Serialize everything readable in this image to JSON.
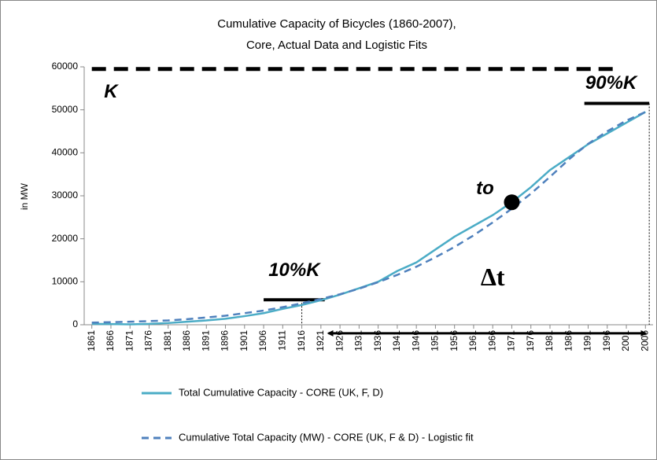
{
  "chart_data": {
    "type": "line",
    "title_lines": [
      "Cumulative Capacity of Bicycles (1860-2007),",
      "Core, Actual Data and Logistic Fits"
    ],
    "y_label": "in MW",
    "x": [
      1861,
      1866,
      1871,
      1876,
      1881,
      1886,
      1891,
      1896,
      1901,
      1906,
      1911,
      1916,
      1921,
      1926,
      1931,
      1936,
      1941,
      1946,
      1951,
      1956,
      1961,
      1966,
      1971,
      1976,
      1981,
      1986,
      1991,
      1996,
      2001,
      2006
    ],
    "series": [
      {
        "name": "Total Cumulative Capacity - CORE (UK, F, D)",
        "color": "#4bacc6",
        "dash": false,
        "values": [
          200,
          150,
          100,
          200,
          400,
          700,
          1000,
          1400,
          2000,
          2700,
          3700,
          4600,
          5700,
          7000,
          8500,
          10000,
          12500,
          14500,
          17500,
          20500,
          23000,
          25500,
          28500,
          32000,
          36000,
          39000,
          42000,
          44500,
          47000,
          49500
        ]
      },
      {
        "name": "Cumulative Total Capacity (MW) - CORE (UK, F & D) - Logistic fit",
        "color": "#4f81bd",
        "dash": true,
        "values": [
          500,
          600,
          700,
          850,
          1000,
          1300,
          1700,
          2100,
          2700,
          3300,
          4100,
          5000,
          6000,
          7100,
          8400,
          9900,
          11600,
          13500,
          15700,
          18100,
          20800,
          23800,
          27000,
          30500,
          34400,
          38500,
          42100,
          45000,
          47500,
          49500
        ]
      }
    ],
    "xlim": [
      1859,
      2008
    ],
    "xticks": [
      1861,
      1866,
      1871,
      1876,
      1881,
      1886,
      1891,
      1896,
      1901,
      1906,
      1911,
      1916,
      1921,
      1926,
      1931,
      1936,
      1941,
      1946,
      1951,
      1956,
      1961,
      1966,
      1971,
      1976,
      1981,
      1986,
      1991,
      1996,
      2001,
      2006
    ],
    "ylim": [
      0,
      60000
    ],
    "yticks": [
      0,
      10000,
      20000,
      30000,
      40000,
      50000,
      60000
    ],
    "grid": false,
    "annotations": [
      {
        "text": "K",
        "x": 1866,
        "y": 54000
      },
      {
        "text": "90%K",
        "x": 1997,
        "y": 56000
      },
      {
        "text": "10%K",
        "x": 1914,
        "y": 12500
      },
      {
        "text": "to",
        "x": 1964,
        "y": 31500
      },
      {
        "text": "Δt",
        "x": 1966,
        "y": 10500
      }
    ],
    "k_line": {
      "x": [
        1861,
        1998
      ],
      "y": 59500
    },
    "upper_line": {
      "x": [
        1990,
        2007
      ],
      "y": 51500
    },
    "lower_line": {
      "x": [
        1906,
        1922
      ],
      "y": 5800
    },
    "to_point": {
      "x": 1971,
      "y": 28500
    },
    "dt_arrow": {
      "x": [
        1923,
        2006
      ],
      "y": -2000
    },
    "lower_guide": {
      "x": 1916,
      "y": 5800
    },
    "upper_guide": {
      "x": 2007,
      "y": 51500
    }
  }
}
